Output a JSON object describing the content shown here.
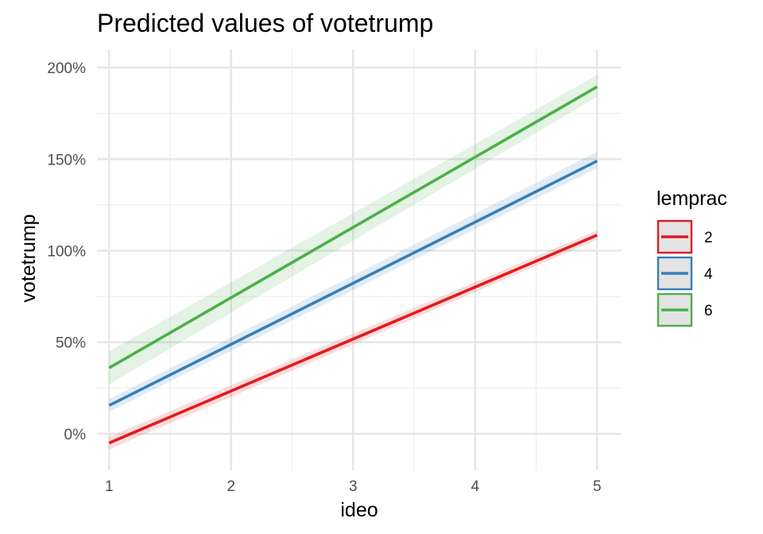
{
  "chart_data": {
    "type": "line",
    "title": "Predicted values of votetrump",
    "xlabel": "ideo",
    "ylabel": "votetrump",
    "x": [
      1,
      5
    ],
    "xlim": [
      0.9,
      5.2
    ],
    "ylim": [
      -0.2,
      2.1
    ],
    "x_ticks": [
      1,
      2,
      3,
      4,
      5
    ],
    "x_tick_labels": [
      "1",
      "2",
      "3",
      "4",
      "5"
    ],
    "y_ticks": [
      0,
      0.5,
      1.0,
      1.5,
      2.0
    ],
    "y_tick_labels": [
      "0%",
      "50%",
      "100%",
      "150%",
      "200%"
    ],
    "grid": true,
    "legend": {
      "title": "lemprac",
      "position": "right"
    },
    "series": [
      {
        "name": "2",
        "color": "#e41a1c",
        "values": [
          -0.05,
          1.085
        ],
        "ci_lower": [
          -0.085,
          1.06
        ],
        "ci_upper": [
          -0.015,
          1.11
        ]
      },
      {
        "name": "4",
        "color": "#377eb8",
        "values": [
          0.155,
          1.49
        ],
        "ci_lower": [
          0.12,
          1.45
        ],
        "ci_upper": [
          0.19,
          1.54
        ]
      },
      {
        "name": "6",
        "color": "#4daf4a",
        "values": [
          0.36,
          1.895
        ],
        "ci_lower": [
          0.27,
          1.84
        ],
        "ci_upper": [
          0.45,
          1.96
        ]
      }
    ]
  }
}
